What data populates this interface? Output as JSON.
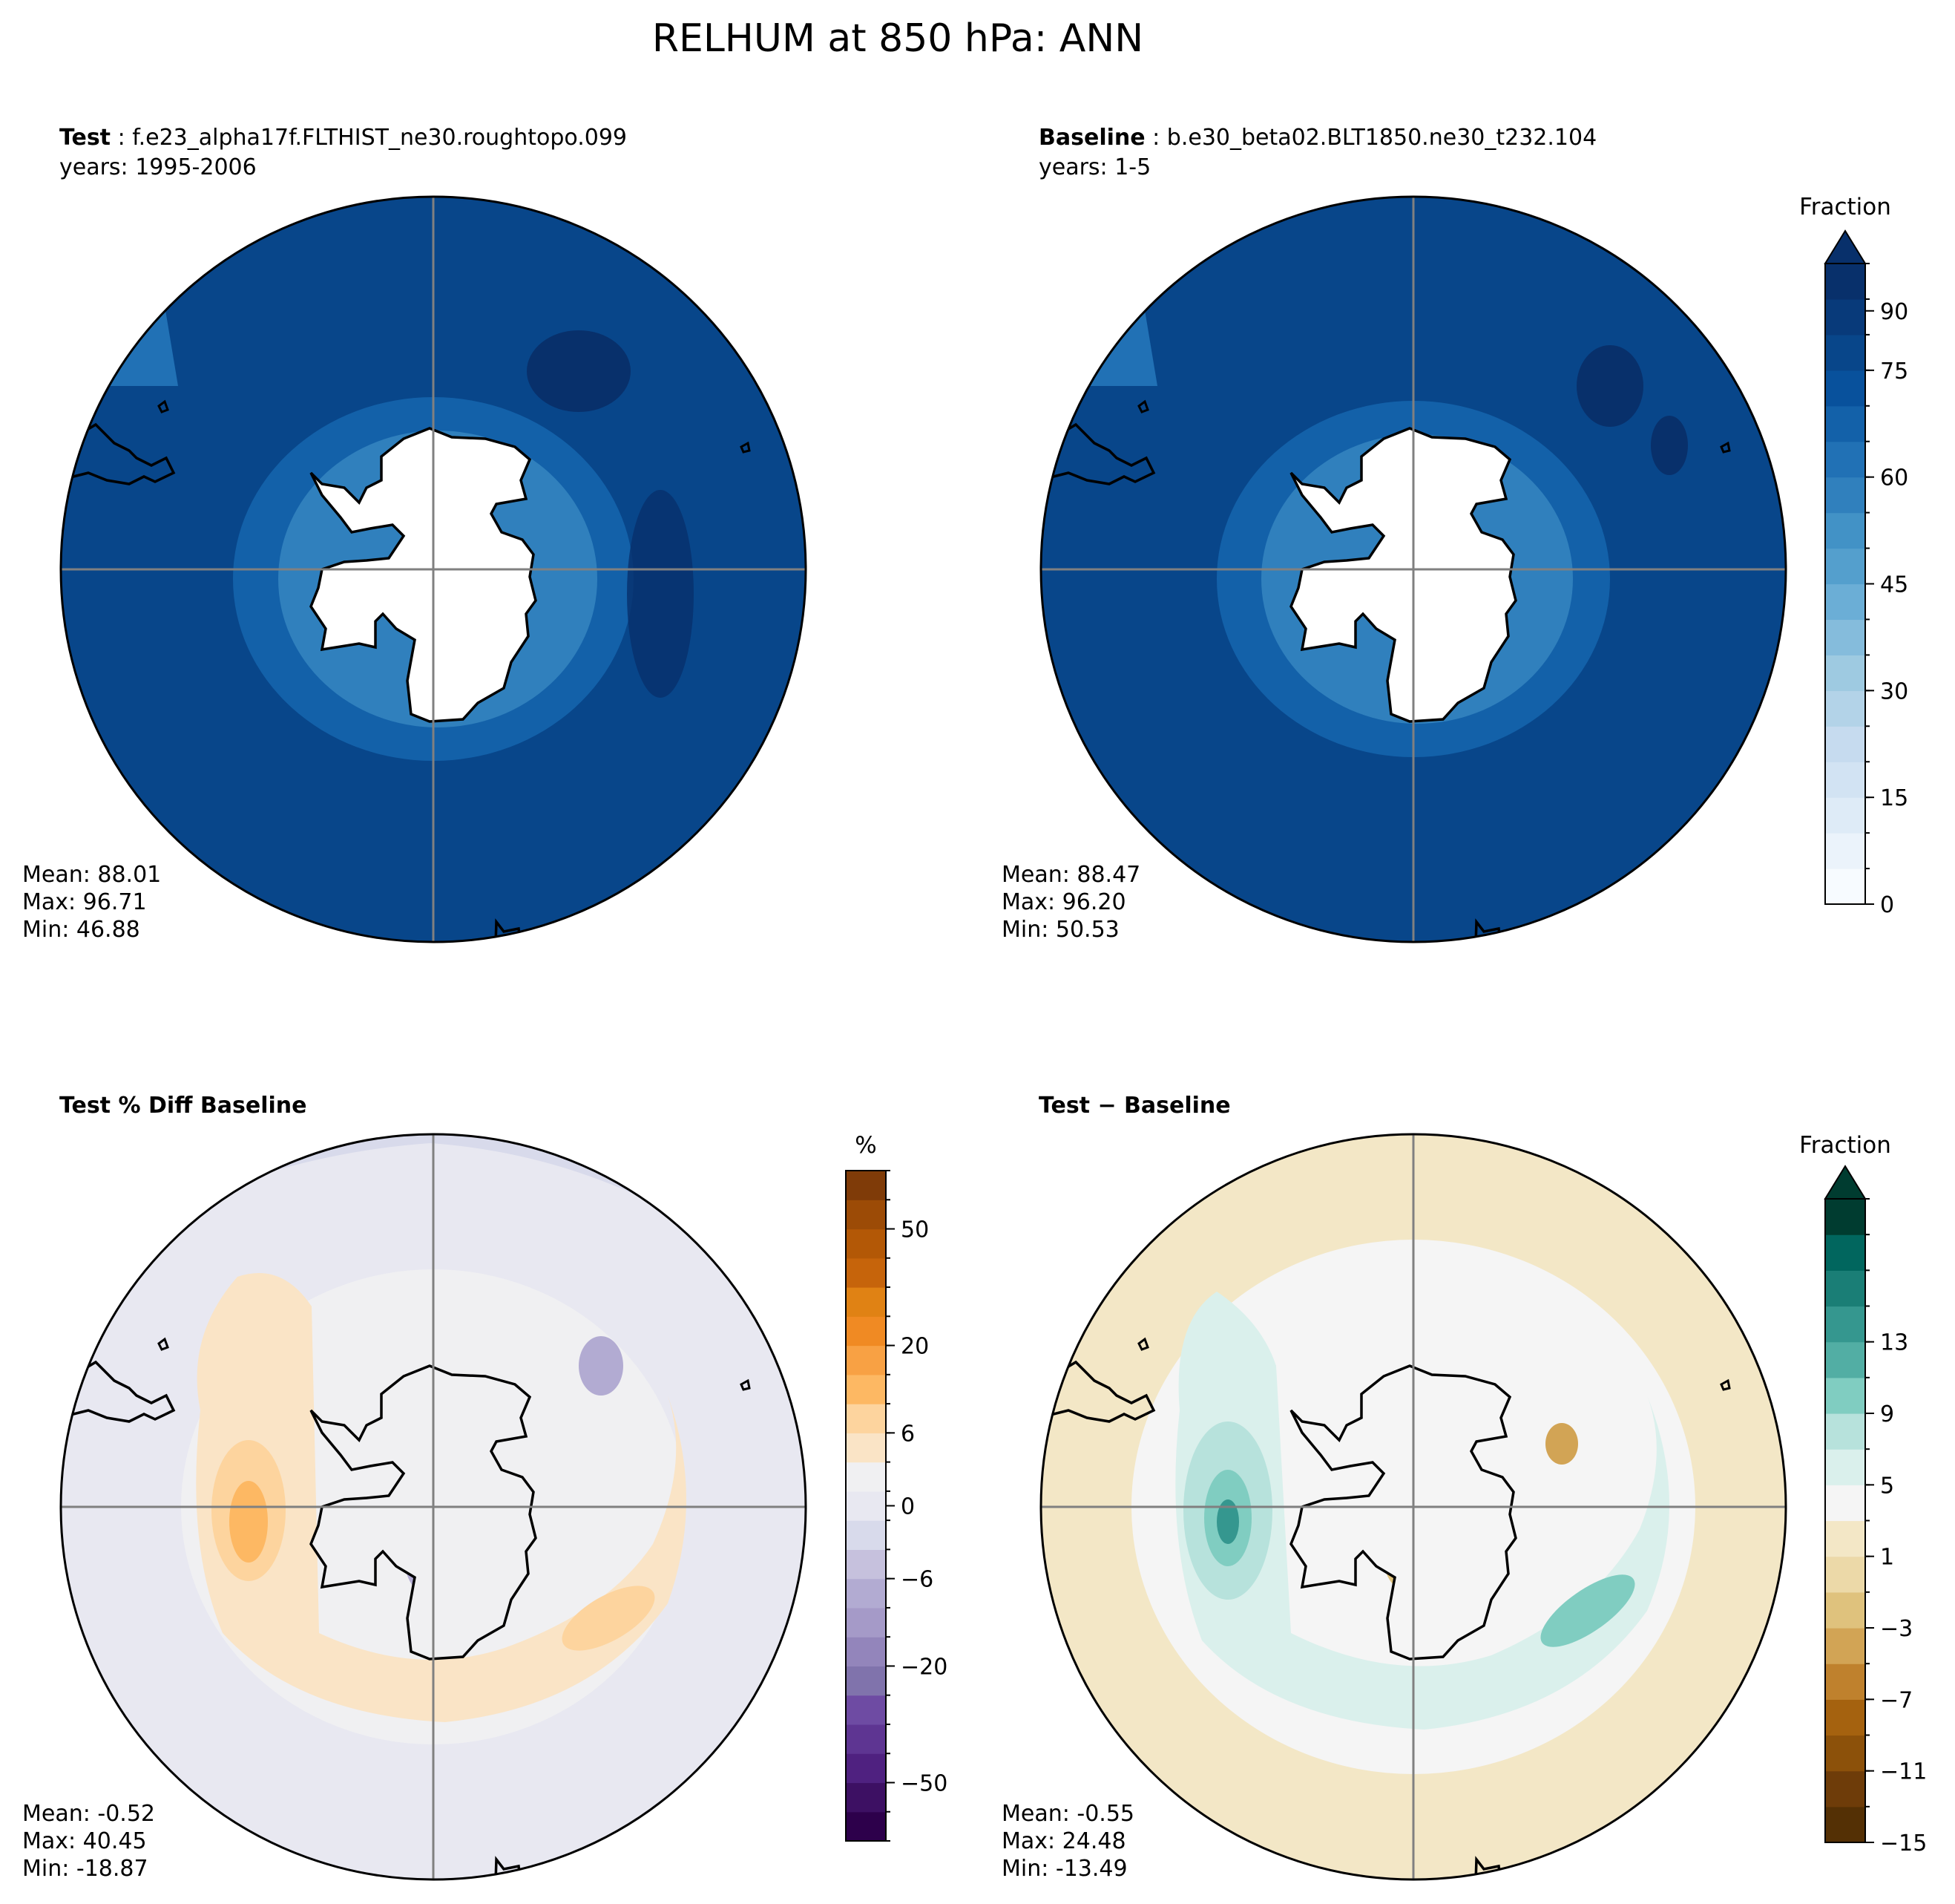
{
  "title": "RELHUM at 850 hPa: ANN",
  "panels": {
    "test": {
      "label": "Test",
      "case": "f.e23_alpha17f.FLTHIST_ne30.roughtopo.099",
      "years": "years: 1995-2006",
      "mean": "Mean: 88.01",
      "max": "Max: 96.71",
      "min": "Min: 46.88"
    },
    "baseline": {
      "label": "Baseline",
      "case": "b.e30_beta02.BLT1850.ne30_t232.104",
      "years": "years: 1-5",
      "mean": "Mean: 88.47",
      "max": "Max: 96.20",
      "min": "Min: 50.53"
    },
    "pctdiff": {
      "label": "Test % Diff Baseline",
      "mean": "Mean: -0.52",
      "max": "Max: 40.45",
      "min": "Min: -18.87"
    },
    "diff": {
      "label": "Test − Baseline",
      "mean": "Mean: -0.55",
      "max": "Max: 24.48",
      "min": "Min: -13.49"
    }
  },
  "colorbars": {
    "top": {
      "title": "Fraction",
      "ticks": [
        "0",
        "15",
        "30",
        "45",
        "60",
        "75",
        "90"
      ],
      "colors": [
        "#f7fbff",
        "#ebf3fb",
        "#deebf7",
        "#d2e3f3",
        "#c6dbef",
        "#b3d3e8",
        "#9ecae1",
        "#85bcdc",
        "#6baed6",
        "#549fcd",
        "#4292c6",
        "#3080bd",
        "#2171b5",
        "#1361a9",
        "#08519c",
        "#08468a",
        "#083a7a",
        "#08306b"
      ]
    },
    "pct": {
      "title": "%",
      "ticks": [
        "−50",
        "−20",
        "−6",
        "0",
        "6",
        "20",
        "50"
      ],
      "colors": [
        "#2d004b",
        "#3d1063",
        "#4f2180",
        "#5e3592",
        "#6e4ba3",
        "#8073ac",
        "#9385bb",
        "#a59ac8",
        "#b2abd2",
        "#c6c1dd",
        "#d8daeb",
        "#e8e8f1",
        "#f0f0f2",
        "#fae4c6",
        "#fdd49e",
        "#fdb863",
        "#f8a144",
        "#f08a23",
        "#e08214",
        "#c6640b",
        "#b35806",
        "#9c4b06",
        "#7f3b08"
      ]
    },
    "diff": {
      "title": "Fraction",
      "ticks": [
        "−15",
        "−11",
        "−7",
        "−3",
        "1",
        "5",
        "9",
        "13"
      ],
      "colors": [
        "#543005",
        "#6e3c09",
        "#8c510a",
        "#a5620f",
        "#bf812d",
        "#d2a455",
        "#dfc27d",
        "#ecd9a8",
        "#f3e7c6",
        "#f5f5f5",
        "#daf0ec",
        "#b7e2dc",
        "#80cdc1",
        "#52aea4",
        "#35978f",
        "#1a7e76",
        "#01665e",
        "#003c30"
      ]
    }
  }
}
